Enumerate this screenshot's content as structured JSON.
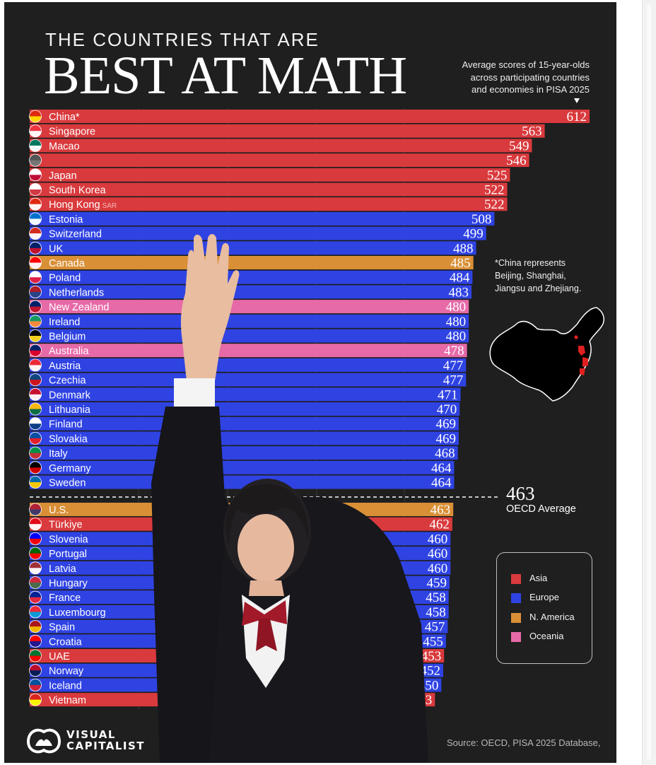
{
  "header": {
    "title_small": "THE COUNTRIES THAT ARE",
    "title_big": "BEST AT MATH",
    "subtitle_lines": [
      "Average scores of 15-year-olds",
      "across participating countries",
      "and economies in PISA 2025"
    ]
  },
  "note": {
    "lines": [
      "*China represents",
      "Beijing, Shanghai,",
      "Jiangsu and Zhejiang."
    ]
  },
  "oecd": {
    "value": "463",
    "label": "OECD Average"
  },
  "legend": [
    {
      "name": "Asia",
      "color": "#d93a3d"
    },
    {
      "name": "Europe",
      "color": "#2f43e3"
    },
    {
      "name": "N. America",
      "color": "#d98f36"
    },
    {
      "name": "Oceania",
      "color": "#e66aa8"
    }
  ],
  "branding": {
    "line1": "VISUAL",
    "line2": "CAPITALIST"
  },
  "source": "Source: OECD, PISA 2025 Database,",
  "chart_data": {
    "type": "bar",
    "orientation": "horizontal",
    "title": "BEST AT MATH",
    "reference_line": {
      "label": "OECD Average",
      "value": 463
    },
    "categories": [
      "China*",
      "Singapore",
      "Macao",
      "",
      "Japan",
      "South Korea",
      "Hong Kong",
      "Estonia",
      "Switzerland",
      "UK",
      "Canada",
      "Poland",
      "Netherlands",
      "New Zealand",
      "Ireland",
      "Belgium",
      "Australia",
      "Austria",
      "Czechia",
      "Denmark",
      "Lithuania",
      "Finland",
      "Slovakia",
      "Italy",
      "Germany",
      "Sweden",
      "U.S.",
      "Türkiye",
      "Slovenia",
      "Portugal",
      "Latvia",
      "Hungary",
      "France",
      "Luxembourg",
      "Spain",
      "Croatia",
      "UAE",
      "Norway",
      "Iceland",
      "Vietnam"
    ],
    "label_suffixes": [
      "",
      "",
      "",
      "",
      "",
      "",
      "SAR",
      "",
      "",
      "",
      "",
      "",
      "",
      "",
      "",
      "",
      "",
      "",
      "",
      "",
      "",
      "",
      "",
      "",
      "",
      "",
      "",
      "",
      "",
      "",
      "",
      "",
      "",
      "",
      "",
      "",
      "",
      "",
      "",
      ""
    ],
    "values": [
      612,
      563,
      549,
      546,
      525,
      522,
      522,
      508,
      499,
      488,
      485,
      484,
      483,
      480,
      480,
      480,
      478,
      477,
      477,
      471,
      470,
      469,
      469,
      468,
      464,
      464,
      463,
      462,
      460,
      460,
      460,
      459,
      458,
      458,
      457,
      455,
      453,
      452,
      450,
      443
    ],
    "value_labels": [
      "612",
      "563",
      "549",
      "546",
      "525",
      "522",
      "522",
      "508",
      "499",
      "488",
      "485",
      "484",
      "483",
      "480",
      "480",
      "480",
      "478",
      "477",
      "477",
      "471",
      "470",
      "469",
      "469",
      "468",
      "464",
      "464",
      "463",
      "462",
      "460",
      "460",
      "460",
      "459",
      "458",
      "458",
      "457",
      "455",
      "453",
      "452",
      "450",
      "443"
    ],
    "regions": [
      "Asia",
      "Asia",
      "Asia",
      "Asia",
      "Asia",
      "Asia",
      "Asia",
      "Europe",
      "Europe",
      "Europe",
      "N. America",
      "Europe",
      "Europe",
      "Oceania",
      "Europe",
      "Europe",
      "Oceania",
      "Europe",
      "Europe",
      "Europe",
      "Europe",
      "Europe",
      "Europe",
      "Europe",
      "Europe",
      "Europe",
      "N. America",
      "Asia",
      "Europe",
      "Europe",
      "Europe",
      "Europe",
      "Europe",
      "Europe",
      "Europe",
      "Europe",
      "Asia",
      "Europe",
      "Europe",
      "Asia"
    ],
    "flag_colors": [
      [
        "#de2910",
        "#ffde00"
      ],
      [
        "#ef3340",
        "#ffffff"
      ],
      [
        "#00785e",
        "#ffffff"
      ],
      [
        "#555555",
        "#777777"
      ],
      [
        "#ffffff",
        "#bc002d"
      ],
      [
        "#ffffff",
        "#cd2e3a"
      ],
      [
        "#de2910",
        "#ffffff"
      ],
      [
        "#0072ce",
        "#ffffff"
      ],
      [
        "#d52b1e",
        "#ffffff"
      ],
      [
        "#012169",
        "#c8102e"
      ],
      [
        "#ff0000",
        "#ffffff"
      ],
      [
        "#ffffff",
        "#dc143c"
      ],
      [
        "#ae1c28",
        "#21468b"
      ],
      [
        "#012169",
        "#cc142b"
      ],
      [
        "#169b62",
        "#ff883e"
      ],
      [
        "#000000",
        "#fdda24"
      ],
      [
        "#012169",
        "#e4002b"
      ],
      [
        "#ed2939",
        "#ffffff"
      ],
      [
        "#11457e",
        "#d7141a"
      ],
      [
        "#c8102e",
        "#ffffff"
      ],
      [
        "#fdb913",
        "#006a44"
      ],
      [
        "#ffffff",
        "#003580"
      ],
      [
        "#0b4ea2",
        "#ee1c25"
      ],
      [
        "#009246",
        "#ce2b37"
      ],
      [
        "#000000",
        "#dd0000"
      ],
      [
        "#006aa7",
        "#fecc00"
      ],
      [
        "#b22234",
        "#3c3b6e"
      ],
      [
        "#e30a17",
        "#ffffff"
      ],
      [
        "#0000ff",
        "#ff0000"
      ],
      [
        "#006600",
        "#ff0000"
      ],
      [
        "#9e3039",
        "#ffffff"
      ],
      [
        "#cd2a3e",
        "#436f4d"
      ],
      [
        "#002395",
        "#ed2939"
      ],
      [
        "#ed2939",
        "#00a1de"
      ],
      [
        "#aa151b",
        "#f1bf00"
      ],
      [
        "#ff0000",
        "#171796"
      ],
      [
        "#00732f",
        "#ff0000"
      ],
      [
        "#ba0c2f",
        "#00205b"
      ],
      [
        "#02529c",
        "#dc1e35"
      ],
      [
        "#da251d",
        "#ffff00"
      ]
    ],
    "colors": {
      "Asia": "#d93a3d",
      "Europe": "#2f43e3",
      "N. America": "#d98f36",
      "Oceania": "#e66aa8"
    },
    "xlim": [
      0,
      612
    ],
    "grid": true
  }
}
